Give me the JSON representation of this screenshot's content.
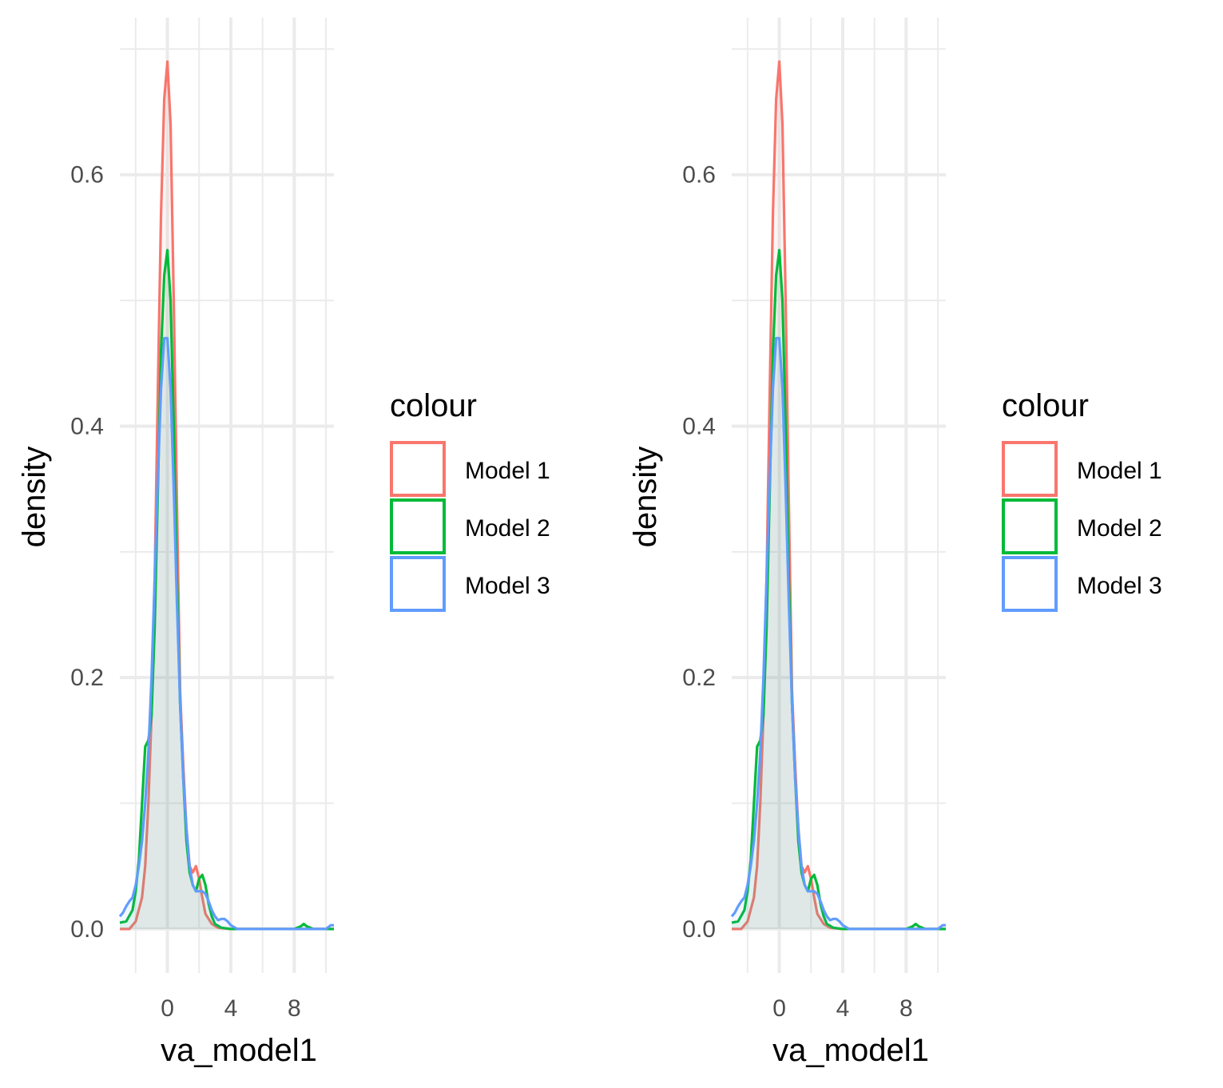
{
  "chart_data": [
    {
      "type": "line",
      "subtype": "density",
      "xlabel": "va_model1",
      "ylabel": "density",
      "xlim": [
        -3,
        10.5
      ],
      "ylim": [
        -0.035,
        0.725
      ],
      "x_ticks": [
        0,
        4,
        8
      ],
      "x_tick_labels": [
        "0",
        "4",
        "8"
      ],
      "y_ticks": [
        0.0,
        0.2,
        0.4,
        0.6
      ],
      "y_tick_labels": [
        "0.0",
        "0.2",
        "0.4",
        "0.6"
      ],
      "grid": true,
      "legend": {
        "title": "colour",
        "position": "right"
      },
      "series": [
        {
          "name": "Model 1",
          "color": "#F8766D",
          "x": [
            -3,
            -2.4,
            -2.0,
            -1.6,
            -1.4,
            -1.2,
            -1.0,
            -0.8,
            -0.6,
            -0.4,
            -0.2,
            0,
            0.2,
            0.4,
            0.6,
            0.8,
            1.0,
            1.2,
            1.4,
            1.6,
            1.8,
            2.0,
            2.2,
            2.4,
            2.8,
            3.2,
            4,
            6,
            8,
            10.5
          ],
          "y": [
            0,
            0,
            0.006,
            0.025,
            0.05,
            0.1,
            0.17,
            0.28,
            0.43,
            0.57,
            0.66,
            0.69,
            0.64,
            0.5,
            0.34,
            0.19,
            0.13,
            0.08,
            0.05,
            0.045,
            0.05,
            0.04,
            0.025,
            0.012,
            0.004,
            0.001,
            0,
            0,
            0,
            0
          ]
        },
        {
          "name": "Model 2",
          "color": "#00BA38",
          "x": [
            -3,
            -2.6,
            -2.2,
            -2.0,
            -1.8,
            -1.6,
            -1.4,
            -1.2,
            -1.0,
            -0.8,
            -0.6,
            -0.4,
            -0.2,
            0,
            0.2,
            0.4,
            0.6,
            0.8,
            1.0,
            1.2,
            1.4,
            1.6,
            1.8,
            2.0,
            2.2,
            2.4,
            2.6,
            2.8,
            3.0,
            3.4,
            4,
            6,
            8,
            8.4,
            8.6,
            8.8,
            9.2,
            10.5
          ],
          "y": [
            0.005,
            0.006,
            0.015,
            0.03,
            0.055,
            0.1,
            0.145,
            0.15,
            0.17,
            0.24,
            0.35,
            0.46,
            0.52,
            0.54,
            0.5,
            0.4,
            0.28,
            0.18,
            0.12,
            0.07,
            0.045,
            0.035,
            0.03,
            0.04,
            0.043,
            0.035,
            0.02,
            0.01,
            0.004,
            0.001,
            0,
            0,
            0,
            0.002,
            0.004,
            0.002,
            0,
            0
          ]
        },
        {
          "name": "Model 3",
          "color": "#619CFF",
          "x": [
            -3,
            -2.8,
            -2.6,
            -2.4,
            -2.2,
            -2.0,
            -1.8,
            -1.6,
            -1.4,
            -1.2,
            -1.0,
            -0.8,
            -0.6,
            -0.4,
            -0.2,
            0,
            0.2,
            0.4,
            0.6,
            0.8,
            1.0,
            1.2,
            1.4,
            1.6,
            1.8,
            2.0,
            2.2,
            2.4,
            2.6,
            2.8,
            3.0,
            3.2,
            3.4,
            3.6,
            3.8,
            4.0,
            4.4,
            6,
            8,
            10,
            10.3,
            10.5
          ],
          "y": [
            0.01,
            0.013,
            0.018,
            0.022,
            0.025,
            0.035,
            0.05,
            0.07,
            0.1,
            0.14,
            0.2,
            0.28,
            0.36,
            0.43,
            0.47,
            0.47,
            0.43,
            0.35,
            0.26,
            0.18,
            0.12,
            0.08,
            0.05,
            0.035,
            0.03,
            0.03,
            0.03,
            0.028,
            0.022,
            0.015,
            0.01,
            0.007,
            0.008,
            0.008,
            0.006,
            0.003,
            0,
            0,
            0,
            0,
            0.003,
            0.003
          ]
        }
      ]
    },
    {
      "type": "line",
      "subtype": "density",
      "xlabel": "va_model1",
      "ylabel": "density",
      "xlim": [
        -3,
        10.5
      ],
      "ylim": [
        -0.035,
        0.725
      ],
      "x_ticks": [
        0,
        4,
        8
      ],
      "x_tick_labels": [
        "0",
        "4",
        "8"
      ],
      "y_ticks": [
        0.0,
        0.2,
        0.4,
        0.6
      ],
      "y_tick_labels": [
        "0.0",
        "0.2",
        "0.4",
        "0.6"
      ],
      "grid": true,
      "legend": {
        "title": "colour",
        "position": "right"
      },
      "series": [
        {
          "name": "Model 1",
          "color": "#F8766D",
          "x": [
            -3,
            -2.4,
            -2.0,
            -1.6,
            -1.4,
            -1.2,
            -1.0,
            -0.8,
            -0.6,
            -0.4,
            -0.2,
            0,
            0.2,
            0.4,
            0.6,
            0.8,
            1.0,
            1.2,
            1.4,
            1.6,
            1.8,
            2.0,
            2.2,
            2.4,
            2.8,
            3.2,
            4,
            6,
            8,
            10.5
          ],
          "y": [
            0,
            0,
            0.006,
            0.025,
            0.05,
            0.1,
            0.17,
            0.28,
            0.43,
            0.57,
            0.66,
            0.69,
            0.64,
            0.5,
            0.34,
            0.19,
            0.13,
            0.08,
            0.05,
            0.045,
            0.05,
            0.04,
            0.025,
            0.012,
            0.004,
            0.001,
            0,
            0,
            0,
            0
          ]
        },
        {
          "name": "Model 2",
          "color": "#00BA38",
          "x": [
            -3,
            -2.6,
            -2.2,
            -2.0,
            -1.8,
            -1.6,
            -1.4,
            -1.2,
            -1.0,
            -0.8,
            -0.6,
            -0.4,
            -0.2,
            0,
            0.2,
            0.4,
            0.6,
            0.8,
            1.0,
            1.2,
            1.4,
            1.6,
            1.8,
            2.0,
            2.2,
            2.4,
            2.6,
            2.8,
            3.0,
            3.4,
            4,
            6,
            8,
            8.4,
            8.6,
            8.8,
            9.2,
            10.5
          ],
          "y": [
            0.005,
            0.006,
            0.015,
            0.03,
            0.055,
            0.1,
            0.145,
            0.15,
            0.17,
            0.24,
            0.35,
            0.46,
            0.52,
            0.54,
            0.5,
            0.4,
            0.28,
            0.18,
            0.12,
            0.07,
            0.045,
            0.035,
            0.03,
            0.04,
            0.043,
            0.035,
            0.02,
            0.01,
            0.004,
            0.001,
            0,
            0,
            0,
            0.002,
            0.004,
            0.002,
            0,
            0
          ]
        },
        {
          "name": "Model 3",
          "color": "#619CFF",
          "x": [
            -3,
            -2.8,
            -2.6,
            -2.4,
            -2.2,
            -2.0,
            -1.8,
            -1.6,
            -1.4,
            -1.2,
            -1.0,
            -0.8,
            -0.6,
            -0.4,
            -0.2,
            0,
            0.2,
            0.4,
            0.6,
            0.8,
            1.0,
            1.2,
            1.4,
            1.6,
            1.8,
            2.0,
            2.2,
            2.4,
            2.6,
            2.8,
            3.0,
            3.2,
            3.4,
            3.6,
            3.8,
            4.0,
            4.4,
            6,
            8,
            10,
            10.3,
            10.5
          ],
          "y": [
            0.01,
            0.013,
            0.018,
            0.022,
            0.025,
            0.035,
            0.05,
            0.07,
            0.1,
            0.14,
            0.2,
            0.28,
            0.36,
            0.43,
            0.47,
            0.47,
            0.43,
            0.35,
            0.26,
            0.18,
            0.12,
            0.08,
            0.05,
            0.035,
            0.03,
            0.03,
            0.03,
            0.028,
            0.022,
            0.015,
            0.01,
            0.007,
            0.008,
            0.008,
            0.006,
            0.003,
            0,
            0,
            0,
            0,
            0.003,
            0.003
          ]
        }
      ]
    }
  ]
}
